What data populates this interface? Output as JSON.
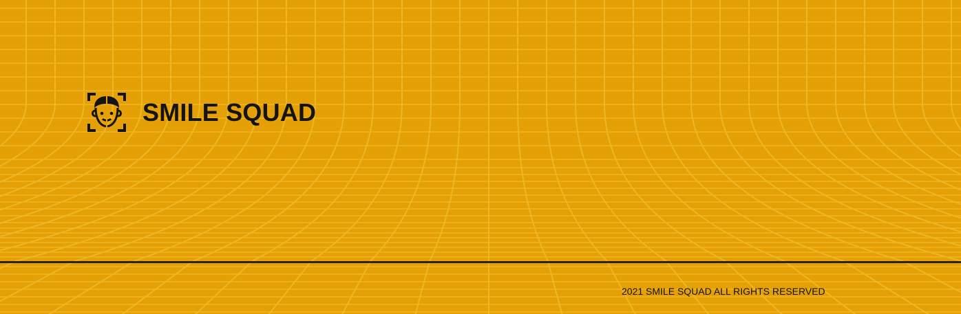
{
  "theme": {
    "background": "#e5a006",
    "grid_line": "#f2c23a",
    "text": "#141414",
    "divider": "#2a2410"
  },
  "header": {
    "logo_icon": "face-scan-icon",
    "brand_name": "SMILE SQUAD"
  },
  "footer": {
    "copyright": "2021 SMILE SQUAD ALL RIGHTS RESERVED"
  }
}
